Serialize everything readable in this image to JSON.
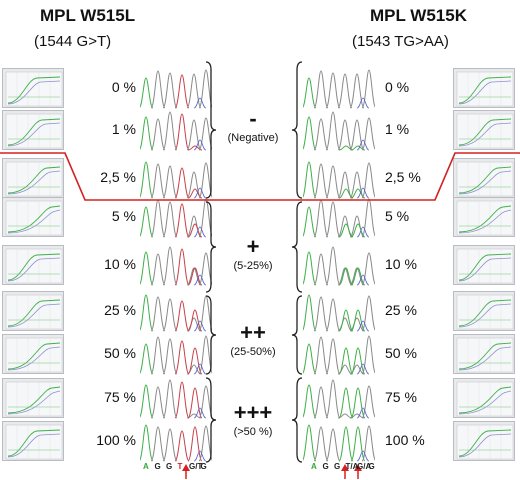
{
  "left": {
    "title": "MPL W515L",
    "subtitle": "(1544 G>T)",
    "percent_labels": [
      "0 %",
      "1 %",
      "2,5 %",
      "5 %",
      "10 %",
      "25 %",
      "50 %",
      "75 %",
      "100 %"
    ],
    "bases": [
      {
        "text": "A",
        "color": "#2eaa3a"
      },
      {
        "text": "G",
        "color": "#222222"
      },
      {
        "text": "G",
        "color": "#222222"
      },
      {
        "text": "T",
        "color": "#d22424"
      },
      {
        "text": "G/T",
        "color": "#222222"
      },
      {
        "text": "G",
        "color": "#222222"
      }
    ]
  },
  "right": {
    "title": "MPL W515K",
    "subtitle": "(1543 TG>AA)",
    "percent_labels": [
      "0 %",
      "1 %",
      "2,5 %",
      "5 %",
      "10 %",
      "25 %",
      "50 %",
      "75 %",
      "100 %"
    ],
    "bases": [
      {
        "text": "A",
        "color": "#2eaa3a"
      },
      {
        "text": "G",
        "color": "#222222"
      },
      {
        "text": "G",
        "color": "#222222"
      },
      {
        "text": "T/A",
        "color": "#222222"
      },
      {
        "text": "G/A",
        "color": "#222222"
      },
      {
        "text": "G",
        "color": "#222222"
      }
    ]
  },
  "grades": [
    {
      "symbol": "-",
      "range": "(Negative)"
    },
    {
      "symbol": "+",
      "range": "(5-25%)"
    },
    {
      "symbol": "++",
      "range": "(25-50%)"
    },
    {
      "symbol": "+++",
      "range": "(>50 %)"
    }
  ],
  "colors": {
    "threshold_line": "#d42020",
    "arrow": "#d42020",
    "trace_green": "#3fb04a",
    "trace_grey": "#8a8a8a",
    "trace_red": "#c8424a",
    "trace_blue": "#5560c8"
  }
}
